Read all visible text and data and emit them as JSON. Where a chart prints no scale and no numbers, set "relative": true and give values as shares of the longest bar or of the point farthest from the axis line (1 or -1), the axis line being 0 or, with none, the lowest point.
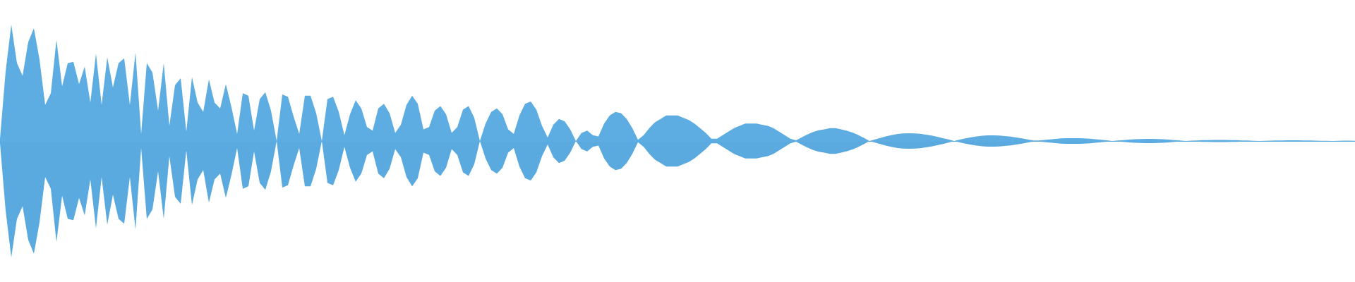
{
  "chart_data": {
    "type": "area",
    "relative": true,
    "categories": [
      null,
      null,
      null,
      null,
      null,
      null,
      null,
      null,
      null,
      null,
      null,
      null,
      null,
      null,
      null,
      null,
      null,
      null,
      null,
      null,
      null,
      null,
      null,
      null,
      null,
      null,
      null,
      null,
      null,
      null,
      null,
      null,
      null,
      null,
      null,
      null,
      null,
      null,
      null,
      null,
      null,
      null,
      null,
      null,
      null,
      null,
      null,
      null,
      null,
      null,
      null,
      null,
      null,
      null,
      null,
      null,
      null,
      null,
      null,
      null,
      null,
      null,
      null,
      null,
      null,
      null,
      null,
      null,
      null,
      null,
      null,
      null,
      null,
      null,
      null,
      null,
      null,
      null,
      null,
      null,
      null,
      null,
      null,
      null,
      null,
      null,
      null,
      null,
      null,
      null,
      null,
      null,
      null,
      null,
      null,
      null,
      null,
      null,
      null,
      null,
      null,
      null,
      null,
      null,
      null,
      null,
      null,
      null,
      null,
      null,
      null,
      null,
      null,
      null,
      null,
      null,
      null,
      null,
      null,
      null,
      null,
      null,
      null,
      null,
      null,
      null,
      null,
      null,
      null,
      null,
      null,
      null,
      null,
      null,
      null,
      null,
      null,
      null,
      null,
      null,
      null,
      null,
      null,
      null,
      null,
      null,
      null,
      null,
      null,
      null,
      null,
      null,
      null,
      null,
      null,
      null,
      null,
      null,
      null,
      null,
      null,
      null,
      null,
      null,
      null,
      null,
      null,
      null,
      null,
      null,
      null,
      null,
      null,
      null,
      null,
      null,
      null,
      null,
      null,
      null,
      null,
      null,
      null,
      null,
      null,
      null,
      null,
      null,
      null,
      null,
      null,
      null,
      null,
      null,
      null,
      null,
      null,
      null,
      null,
      null,
      null,
      null,
      null,
      null,
      null,
      null,
      null,
      null,
      null,
      null,
      null,
      null,
      null,
      null,
      null,
      null,
      null,
      null,
      null,
      null,
      null,
      null,
      null,
      null,
      null,
      null,
      null,
      null,
      null,
      null,
      null,
      null,
      null,
      null,
      null,
      null,
      null,
      null,
      null,
      null,
      null
    ],
    "series": [
      {
        "color": "#5dade2",
        "values": [
          0.02,
          0.6,
          1.0,
          0.67,
          0.56,
          0.85,
          0.97,
          0.7,
          0.31,
          0.41,
          0.87,
          0.47,
          0.67,
          0.68,
          0.49,
          0.64,
          0.33,
          0.75,
          0.31,
          0.72,
          0.46,
          0.67,
          0.71,
          0.31,
          0.76,
          0.06,
          0.67,
          0.59,
          0.26,
          0.67,
          0.13,
          0.48,
          0.54,
          0.08,
          0.55,
          0.33,
          0.25,
          0.53,
          0.33,
          0.28,
          0.49,
          0.29,
          0.06,
          0.41,
          0.39,
          0.09,
          0.36,
          0.42,
          0.26,
          0,
          0.4,
          0.38,
          0.21,
          0.06,
          0.39,
          0.39,
          0.24,
          0,
          0.36,
          0.38,
          0.25,
          0.05,
          0.23,
          0.35,
          0.28,
          0.12,
          0.09,
          0.28,
          0.32,
          0.24,
          0.07,
          0.14,
          0.31,
          0.39,
          0.32,
          0.1,
          0.12,
          0.26,
          0.3,
          0.23,
          0.07,
          0.12,
          0.27,
          0.3,
          0.2,
          0,
          0.15,
          0.25,
          0.28,
          0.23,
          0.1,
          0.06,
          0.22,
          0.32,
          0.34,
          0.27,
          0.13,
          0.03,
          0.14,
          0.19,
          0.17,
          0.1,
          0,
          0.07,
          0.09,
          0.05,
          0.04,
          0.15,
          0.22,
          0.25,
          0.24,
          0.19,
          0.11,
          0.01,
          0.05,
          0.11,
          0.16,
          0.19,
          0.22,
          0.22,
          0.22,
          0.2,
          0.18,
          0.15,
          0.11,
          0.07,
          0.02,
          0.02,
          0.05,
          0.08,
          0.11,
          0.13,
          0.15,
          0.15,
          0.15,
          0.14,
          0.13,
          0.11,
          0.08,
          0.05,
          0.02,
          0.006,
          0.032,
          0.056,
          0.077,
          0.093,
          0.1,
          0.11,
          0.11,
          0.1,
          0.088,
          0.072,
          0.051,
          0.028,
          0,
          0.013,
          0.028,
          0.041,
          0.052,
          0.06,
          0.065,
          0.067,
          0.065,
          0.062,
          0.055,
          0.047,
          0.037,
          0.025,
          0.013,
          0,
          0.012,
          0.022,
          0.032,
          0.039,
          0.045,
          0.048,
          0.048,
          0.047,
          0.043,
          0.038,
          0.031,
          0.022,
          0.013,
          0.004,
          0.004,
          0.009,
          0.014,
          0.018,
          0.022,
          0.024,
          0.024,
          0.024,
          0.022,
          0.019,
          0.015,
          0.011,
          0.006,
          0,
          0.004,
          0.008,
          0.012,
          0.015,
          0.017,
          0.018,
          0.018,
          0.017,
          0.015,
          0.012,
          0.008,
          0.004,
          0,
          0.003,
          0.005,
          0.007,
          0.008,
          0.009,
          0.009,
          0.009,
          0.008,
          0.007,
          0.005,
          0.004,
          0.002,
          0,
          0.002,
          0.003,
          0.004,
          0.005,
          0.006,
          0.006,
          0.006,
          0.005,
          0.004,
          0.003,
          0.002,
          0.001,
          0,
          0.001,
          0.003,
          0.003,
          0.002
        ]
      },
      {
        "color": "#5aaae0",
        "values": [
          -0.02,
          -0.6,
          -1.0,
          -0.67,
          -0.56,
          -0.85,
          -0.97,
          -0.7,
          -0.31,
          -0.41,
          -0.87,
          -0.47,
          -0.67,
          -0.68,
          -0.49,
          -0.64,
          -0.33,
          -0.75,
          -0.31,
          -0.72,
          -0.46,
          -0.67,
          -0.71,
          -0.31,
          -0.76,
          -0.06,
          -0.67,
          -0.59,
          -0.26,
          -0.67,
          -0.13,
          -0.48,
          -0.54,
          -0.08,
          -0.55,
          -0.33,
          -0.25,
          -0.53,
          -0.33,
          -0.28,
          -0.49,
          -0.29,
          -0.06,
          -0.41,
          -0.39,
          -0.09,
          -0.36,
          -0.42,
          -0.26,
          0,
          -0.4,
          -0.38,
          -0.21,
          -0.06,
          -0.39,
          -0.39,
          -0.24,
          0,
          -0.36,
          -0.38,
          -0.25,
          -0.05,
          -0.23,
          -0.35,
          -0.28,
          -0.12,
          -0.09,
          -0.28,
          -0.32,
          -0.24,
          -0.07,
          -0.14,
          -0.31,
          -0.39,
          -0.32,
          -0.1,
          -0.12,
          -0.26,
          -0.3,
          -0.23,
          -0.07,
          -0.12,
          -0.27,
          -0.3,
          -0.2,
          0,
          -0.15,
          -0.25,
          -0.28,
          -0.23,
          -0.1,
          -0.06,
          -0.22,
          -0.32,
          -0.34,
          -0.27,
          -0.13,
          -0.03,
          -0.14,
          -0.19,
          -0.17,
          -0.1,
          0,
          -0.07,
          -0.09,
          -0.05,
          -0.04,
          -0.15,
          -0.22,
          -0.25,
          -0.24,
          -0.19,
          -0.11,
          -0.01,
          -0.05,
          -0.11,
          -0.16,
          -0.19,
          -0.22,
          -0.22,
          -0.22,
          -0.2,
          -0.18,
          -0.15,
          -0.11,
          -0.07,
          -0.02,
          -0.02,
          -0.05,
          -0.08,
          -0.11,
          -0.13,
          -0.15,
          -0.15,
          -0.15,
          -0.14,
          -0.13,
          -0.11,
          -0.08,
          -0.05,
          -0.02,
          -0.006,
          -0.032,
          -0.056,
          -0.077,
          -0.093,
          -0.1,
          -0.11,
          -0.11,
          -0.1,
          -0.088,
          -0.072,
          -0.051,
          -0.028,
          0,
          -0.013,
          -0.028,
          -0.041,
          -0.052,
          -0.06,
          -0.065,
          -0.067,
          -0.065,
          -0.062,
          -0.055,
          -0.047,
          -0.037,
          -0.025,
          -0.013,
          0,
          -0.012,
          -0.022,
          -0.032,
          -0.039,
          -0.045,
          -0.048,
          -0.048,
          -0.047,
          -0.043,
          -0.038,
          -0.031,
          -0.022,
          -0.013,
          -0.004,
          -0.004,
          -0.009,
          -0.014,
          -0.018,
          -0.022,
          -0.024,
          -0.024,
          -0.024,
          -0.022,
          -0.019,
          -0.015,
          -0.011,
          -0.006,
          0,
          -0.004,
          -0.008,
          -0.012,
          -0.015,
          -0.017,
          -0.018,
          -0.018,
          -0.017,
          -0.015,
          -0.012,
          -0.008,
          -0.004,
          0,
          -0.003,
          -0.005,
          -0.007,
          -0.008,
          -0.009,
          -0.009,
          -0.009,
          -0.008,
          -0.007,
          -0.005,
          -0.004,
          -0.002,
          0,
          -0.002,
          -0.003,
          -0.004,
          -0.005,
          -0.006,
          -0.006,
          -0.006,
          -0.005,
          -0.004,
          -0.003,
          -0.002,
          -0.001,
          0,
          -0.001,
          -0.003,
          -0.003,
          -0.002
        ]
      }
    ]
  }
}
